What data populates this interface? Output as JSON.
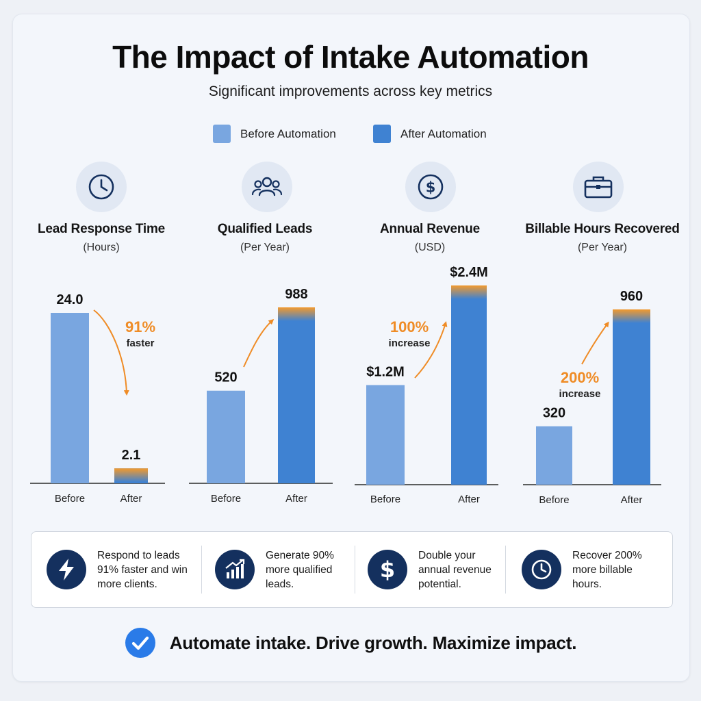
{
  "title": "The Impact of Intake Automation",
  "subtitle": "Significant improvements across key metrics",
  "legend": {
    "before": "Before Automation",
    "after": "After Automation"
  },
  "colors": {
    "before": "#79a6e0",
    "after": "#3f82d2",
    "accent": "#ef8c26",
    "icon_fill": "#14305e",
    "check": "#2a7be8"
  },
  "chart_data": [
    {
      "type": "bar",
      "title": "Lead Response Time",
      "subtitle": "(Hours)",
      "icon": "clock-icon",
      "categories": [
        "Before",
        "After"
      ],
      "values": [
        24.0,
        2.1
      ],
      "value_labels": [
        "24.0",
        "2.1"
      ],
      "change_value": "91%",
      "change_word": "faster"
    },
    {
      "type": "bar",
      "title": "Qualified Leads",
      "subtitle": "(Per Year)",
      "icon": "users-icon",
      "categories": [
        "Before",
        "After"
      ],
      "values": [
        520,
        988
      ],
      "value_labels": [
        "520",
        "988"
      ],
      "change_value": "",
      "change_word": ""
    },
    {
      "type": "bar",
      "title": "Annual Revenue",
      "subtitle": "(USD)",
      "icon": "dollar-icon",
      "categories": [
        "Before",
        "After"
      ],
      "values": [
        1.2,
        2.4
      ],
      "value_labels": [
        "$1.2M",
        "$2.4M"
      ],
      "change_value": "100%",
      "change_word": "increase"
    },
    {
      "type": "bar",
      "title": "Billable Hours Recovered",
      "subtitle": "(Per Year)",
      "icon": "briefcase-icon",
      "categories": [
        "Before",
        "After"
      ],
      "values": [
        320,
        960
      ],
      "value_labels": [
        "320",
        "960"
      ],
      "change_value": "200%",
      "change_word": "increase"
    }
  ],
  "features": [
    {
      "icon": "lightning-icon",
      "lines": [
        "Respond to leads",
        "91% faster and win",
        "more clients."
      ]
    },
    {
      "icon": "growth-chart-icon",
      "lines": [
        "Generate 90%",
        "more qualified",
        "leads."
      ]
    },
    {
      "icon": "dollar-sign-icon",
      "lines": [
        "Double your",
        "annual revenue",
        "potential."
      ]
    },
    {
      "icon": "clock-icon",
      "lines": [
        "Recover 200%",
        "more billable",
        "hours."
      ]
    }
  ],
  "cta": "Automate intake. Drive growth. Maximize impact."
}
